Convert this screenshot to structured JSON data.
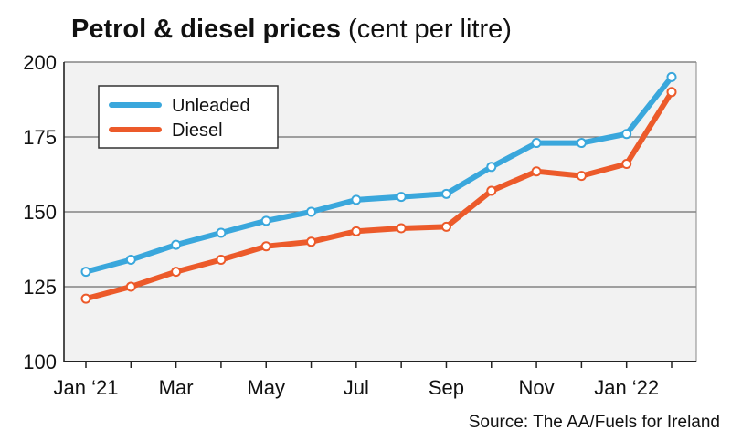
{
  "chart_data": {
    "type": "line",
    "title": "Petrol & diesel prices",
    "subtitle": "(cent per litre)",
    "source": "Source: The AA/Fuels for Ireland",
    "x_tick_labels": [
      "Jan ‘21",
      "Mar",
      "May",
      "Jul",
      "Sep",
      "Nov",
      "Jan ‘22"
    ],
    "x_tick_positions": [
      0,
      2,
      4,
      6,
      8,
      10,
      12
    ],
    "y_ticks": [
      100,
      125,
      150,
      175,
      200
    ],
    "ylim": [
      100,
      200
    ],
    "xlim": [
      0,
      13
    ],
    "grid": true,
    "legend_position": "top-left",
    "x": [
      "Jan 2021",
      "Feb 2021",
      "Mar 2021",
      "Apr 2021",
      "May 2021",
      "Jun 2021",
      "Jul 2021",
      "Aug 2021",
      "Sep 2021",
      "Oct 2021",
      "Nov 2021",
      "Dec 2021",
      "Jan 2022",
      "Feb 2022"
    ],
    "series": [
      {
        "name": "Unleaded",
        "color": "#3aa7dc",
        "values": [
          130,
          134,
          139,
          143,
          147,
          150,
          154,
          155,
          156,
          165,
          173,
          173,
          176,
          195
        ]
      },
      {
        "name": "Diesel",
        "color": "#ec5a2a",
        "values": [
          121,
          125,
          130,
          134,
          138.5,
          140,
          143.5,
          144.5,
          145,
          157,
          163.5,
          162,
          166,
          190
        ]
      }
    ]
  }
}
